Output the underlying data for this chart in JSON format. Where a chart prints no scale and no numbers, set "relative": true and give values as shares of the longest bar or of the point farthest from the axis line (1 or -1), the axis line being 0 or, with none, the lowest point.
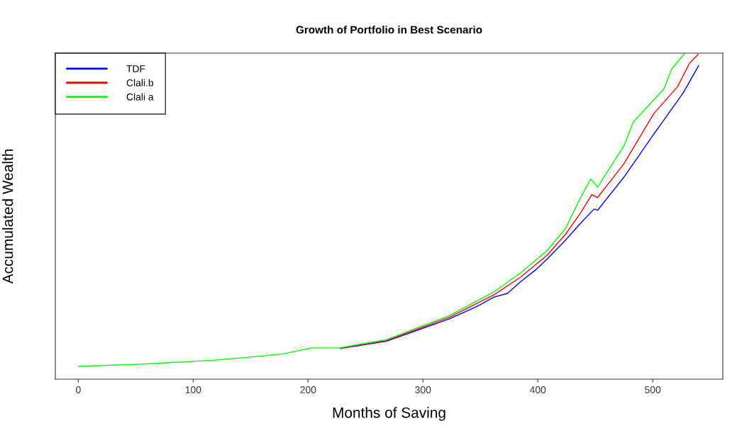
{
  "chart_data": {
    "type": "line",
    "title": "Growth of Portfolio in Best Scenario",
    "xlabel": "Months of Saving",
    "ylabel": "Accumulated Wealth",
    "relative": true,
    "xlim": [
      -20,
      561
    ],
    "xticks": [
      0,
      100,
      200,
      300,
      400,
      500
    ],
    "grid": false,
    "legend": "top left",
    "marker": "none",
    "line_style": "solid",
    "series": [
      {
        "name": "TDF",
        "color": "#0000ff",
        "x": [
          228,
          253,
          268,
          295,
          323,
          346.5,
          362,
          373.5,
          385,
          398,
          408,
          424,
          436.6,
          449,
          452,
          475,
          501,
          526.5,
          540
        ],
        "values": [
          0.094,
          0.108,
          0.116,
          0.15,
          0.185,
          0.222,
          0.252,
          0.263,
          0.299,
          0.335,
          0.368,
          0.426,
          0.476,
          0.522,
          0.518,
          0.62,
          0.752,
          0.878,
          0.962
        ]
      },
      {
        "name": "Clali.b",
        "color": "#ff0000",
        "x": [
          228,
          253,
          268,
          323,
          362,
          385,
          408,
          424,
          436.6,
          447,
          452,
          475,
          501,
          521.6,
          532,
          539.5
        ],
        "values": [
          0.095,
          0.11,
          0.118,
          0.19,
          0.259,
          0.313,
          0.38,
          0.444,
          0.507,
          0.566,
          0.557,
          0.661,
          0.815,
          0.897,
          0.969,
          0.996
        ]
      },
      {
        "name": "Clali a",
        "color": "#00ff00",
        "x": [
          0,
          55,
          117,
          148,
          179,
          203,
          228,
          253,
          268,
          323,
          362,
          385,
          408,
          424,
          436.6,
          446,
          452,
          475,
          483,
          510,
          516.5,
          528
        ],
        "values": [
          0.039,
          0.046,
          0.058,
          0.067,
          0.078,
          0.096,
          0.096,
          0.112,
          0.121,
          0.195,
          0.268,
          0.326,
          0.394,
          0.462,
          0.552,
          0.614,
          0.589,
          0.716,
          0.788,
          0.892,
          0.951,
          1.0
        ]
      }
    ]
  }
}
